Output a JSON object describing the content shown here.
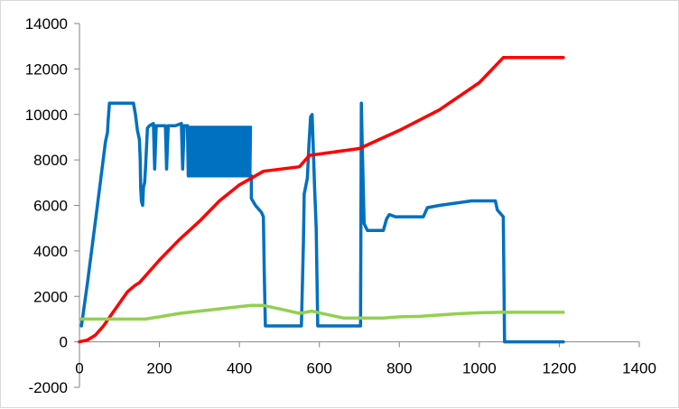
{
  "chart_data": {
    "type": "line",
    "title": "",
    "xlabel": "",
    "ylabel": "",
    "xlim": [
      0,
      1400
    ],
    "ylim": [
      -2000,
      14000
    ],
    "x_ticks": [
      0,
      200,
      400,
      600,
      800,
      1000,
      1200,
      1400
    ],
    "y_ticks": [
      -2000,
      0,
      2000,
      4000,
      6000,
      8000,
      10000,
      12000,
      14000
    ],
    "x_tick_labels": [
      "0",
      "200",
      "400",
      "600",
      "800",
      "1000",
      "1200",
      "1400"
    ],
    "y_tick_labels": [
      "-2000",
      "0",
      "2000",
      "4000",
      "6000",
      "8000",
      "10000",
      "12000",
      "14000"
    ],
    "grid": false,
    "legend": "none",
    "series": [
      {
        "color": "#0070c0",
        "points": [
          [
            5,
            700
          ],
          [
            20,
            2600
          ],
          [
            45,
            6000
          ],
          [
            65,
            8800
          ],
          [
            70,
            9200
          ],
          [
            72,
            9800
          ],
          [
            75,
            10500
          ],
          [
            90,
            10500
          ],
          [
            110,
            10500
          ],
          [
            135,
            10500
          ],
          [
            140,
            10000
          ],
          [
            145,
            9300
          ],
          [
            150,
            8900
          ],
          [
            152,
            8000
          ],
          [
            153,
            6800
          ],
          [
            155,
            6200
          ],
          [
            158,
            6000
          ],
          [
            160,
            6800
          ],
          [
            163,
            7000
          ],
          [
            165,
            7600
          ],
          [
            170,
            9400
          ],
          [
            175,
            9500
          ],
          [
            185,
            9600
          ],
          [
            188,
            7600
          ],
          [
            192,
            9500
          ],
          [
            200,
            9500
          ],
          [
            215,
            9500
          ],
          [
            218,
            7600
          ],
          [
            222,
            9500
          ],
          [
            240,
            9500
          ],
          [
            255,
            9600
          ],
          [
            258,
            7600
          ],
          [
            262,
            9500
          ],
          [
            270,
            9500
          ],
          [
            272,
            7300
          ],
          [
            430,
            7300
          ],
          [
            430,
            6300
          ],
          [
            440,
            6000
          ],
          [
            455,
            5700
          ],
          [
            460,
            5500
          ],
          [
            462,
            3200
          ],
          [
            465,
            700
          ],
          [
            480,
            700
          ],
          [
            520,
            700
          ],
          [
            555,
            700
          ],
          [
            560,
            4300
          ],
          [
            562,
            6500
          ],
          [
            570,
            7200
          ],
          [
            574,
            8700
          ],
          [
            578,
            9900
          ],
          [
            582,
            10000
          ],
          [
            588,
            6800
          ],
          [
            592,
            5000
          ],
          [
            596,
            700
          ],
          [
            620,
            700
          ],
          [
            650,
            700
          ],
          [
            680,
            700
          ],
          [
            703,
            700
          ],
          [
            705,
            10500
          ],
          [
            707,
            8800
          ],
          [
            712,
            5200
          ],
          [
            720,
            4900
          ],
          [
            760,
            4900
          ],
          [
            768,
            5400
          ],
          [
            775,
            5600
          ],
          [
            790,
            5500
          ],
          [
            820,
            5500
          ],
          [
            860,
            5500
          ],
          [
            870,
            5900
          ],
          [
            900,
            6000
          ],
          [
            940,
            6100
          ],
          [
            980,
            6200
          ],
          [
            1020,
            6200
          ],
          [
            1040,
            6200
          ],
          [
            1045,
            5800
          ],
          [
            1055,
            5600
          ],
          [
            1060,
            5500
          ],
          [
            1063,
            0
          ],
          [
            1100,
            0
          ],
          [
            1150,
            0
          ],
          [
            1210,
            0
          ]
        ]
      },
      {
        "color": "#ff0000",
        "points": [
          [
            0,
            0
          ],
          [
            20,
            80
          ],
          [
            40,
            300
          ],
          [
            60,
            700
          ],
          [
            80,
            1200
          ],
          [
            100,
            1700
          ],
          [
            120,
            2200
          ],
          [
            140,
            2500
          ],
          [
            150,
            2600
          ],
          [
            160,
            2800
          ],
          [
            200,
            3600
          ],
          [
            250,
            4500
          ],
          [
            300,
            5300
          ],
          [
            350,
            6200
          ],
          [
            400,
            6900
          ],
          [
            430,
            7200
          ],
          [
            460,
            7500
          ],
          [
            550,
            7700
          ],
          [
            575,
            8200
          ],
          [
            700,
            8500
          ],
          [
            800,
            9300
          ],
          [
            900,
            10200
          ],
          [
            1000,
            11400
          ],
          [
            1060,
            12500
          ],
          [
            1100,
            12500
          ],
          [
            1210,
            12500
          ]
        ]
      },
      {
        "color": "#92d050",
        "points": [
          [
            5,
            1000
          ],
          [
            50,
            1000
          ],
          [
            100,
            1000
          ],
          [
            150,
            1000
          ],
          [
            165,
            1000
          ],
          [
            200,
            1100
          ],
          [
            250,
            1250
          ],
          [
            300,
            1350
          ],
          [
            350,
            1450
          ],
          [
            400,
            1550
          ],
          [
            430,
            1600
          ],
          [
            460,
            1600
          ],
          [
            500,
            1450
          ],
          [
            550,
            1250
          ],
          [
            580,
            1350
          ],
          [
            620,
            1200
          ],
          [
            660,
            1050
          ],
          [
            700,
            1050
          ],
          [
            760,
            1050
          ],
          [
            800,
            1100
          ],
          [
            850,
            1120
          ],
          [
            900,
            1180
          ],
          [
            950,
            1240
          ],
          [
            1000,
            1280
          ],
          [
            1050,
            1300
          ],
          [
            1100,
            1300
          ],
          [
            1150,
            1300
          ],
          [
            1210,
            1300
          ]
        ]
      }
    ]
  },
  "axis_color": "#868686"
}
